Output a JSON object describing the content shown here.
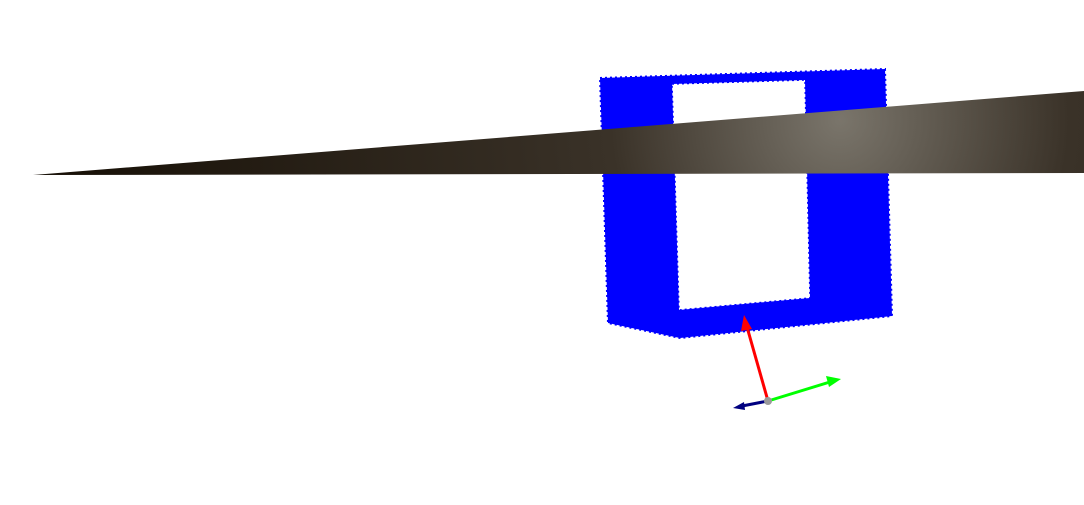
{
  "viewer": {
    "background_color": "#ffffff"
  },
  "scene": {
    "plane": {
      "color_dark": "#150e05",
      "color_mid": "#3a3228",
      "color_highlight": "#7a756b"
    },
    "frame_object": {
      "color": "#0000ff",
      "shape": "rectangular-frame"
    },
    "coordinate_axes": {
      "x_axis_color": "#ff0000",
      "y_axis_color": "#00ff00",
      "z_axis_color": "#000080",
      "origin_color": "#9a9a9a"
    }
  }
}
